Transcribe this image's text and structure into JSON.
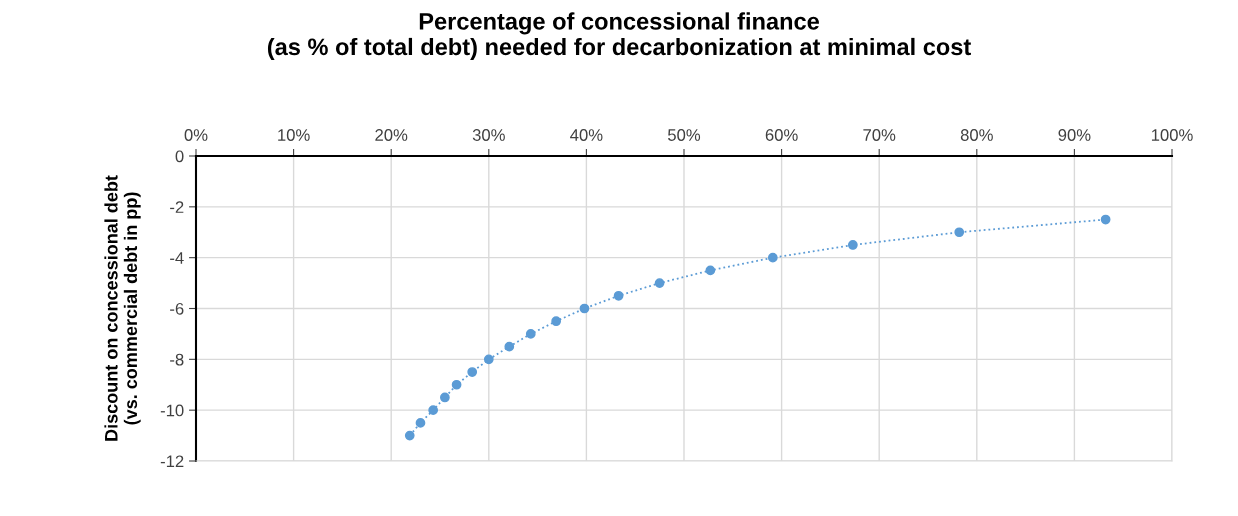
{
  "chart_data": {
    "type": "line",
    "title": "Percentage of concessional finance\n(as % of total debt) needed for decarbonization at minimal cost",
    "ylabel": "Discount on concessional debt\n(vs. commercial debt in pp)",
    "x": [
      21.9,
      23.0,
      24.3,
      25.5,
      26.7,
      28.3,
      30.0,
      32.1,
      34.3,
      36.9,
      39.8,
      43.3,
      47.5,
      52.7,
      59.1,
      67.3,
      78.2,
      93.2
    ],
    "series": [
      {
        "color": "#5b9bd5",
        "values": [
          -11,
          -10.5,
          -10,
          -9.5,
          -9,
          -8.5,
          -8,
          -7.5,
          -7,
          -6.5,
          -6,
          -5.5,
          -5,
          -4.5,
          -4,
          -3.5,
          -3,
          -2.5
        ]
      }
    ],
    "xlim": [
      0,
      100
    ],
    "xticks": [
      {
        "value": 0,
        "label": "0%"
      },
      {
        "value": 10,
        "label": "10%"
      },
      {
        "value": 20,
        "label": "20%"
      },
      {
        "value": 30,
        "label": "30%"
      },
      {
        "value": 40,
        "label": "40%"
      },
      {
        "value": 50,
        "label": "50%"
      },
      {
        "value": 60,
        "label": "60%"
      },
      {
        "value": 70,
        "label": "70%"
      },
      {
        "value": 80,
        "label": "80%"
      },
      {
        "value": 90,
        "label": "90%"
      },
      {
        "value": 100,
        "label": "100%"
      }
    ],
    "ylim": [
      -12,
      0
    ],
    "yticks": [
      0,
      -2,
      -4,
      -6,
      -8,
      -10,
      -12
    ],
    "grid": true,
    "marker": "circle",
    "line_style": "dotted"
  }
}
